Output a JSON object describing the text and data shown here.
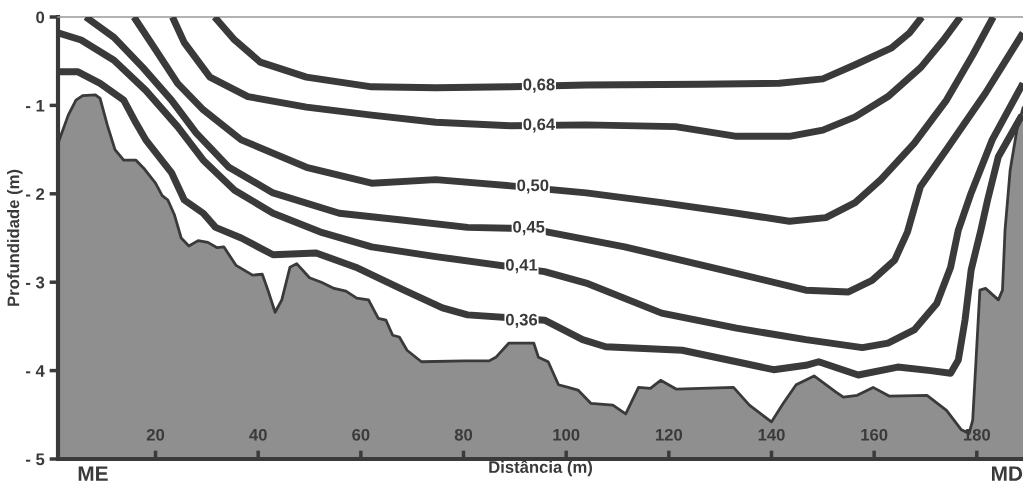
{
  "chart_data": {
    "type": "line",
    "xlabel": "Distância (m)",
    "ylabel": "Profundidade (m)",
    "xlim": [
      1,
      189
    ],
    "ylim": [
      -5,
      0
    ],
    "xticks": [
      20,
      40,
      60,
      80,
      100,
      120,
      140,
      160,
      180
    ],
    "yticks": [
      {
        "value": -5,
        "label": "- 5"
      },
      {
        "value": -4,
        "label": "- 4"
      },
      {
        "value": -3,
        "label": "- 3"
      },
      {
        "value": -2,
        "label": "- 2"
      },
      {
        "value": -1,
        "label": "- 1"
      },
      0
    ],
    "grid": false,
    "legend": false,
    "marker": "none",
    "line_style": "solid",
    "series": [
      {
        "type": "area",
        "color": "#ffffff",
        "x": [
          1,
          3.0,
          4.5,
          5.8,
          8.3,
          9.2,
          10.6,
          12.1,
          13.8,
          16.2,
          17.7,
          20,
          21.3,
          22.4,
          23.7,
          25.0,
          26.5,
          28.3,
          30.2,
          32.0,
          33.3,
          35.7,
          38.9,
          40.8,
          41.9,
          43.3,
          44.6,
          46.2,
          47.5,
          50.0,
          52.3,
          54.8,
          57.1,
          59.2,
          61.5,
          63.4,
          64.9,
          66.2,
          67.5,
          69.0,
          71.8,
          80.2,
          85.0,
          86.3,
          88.8,
          93.7,
          94.6,
          96.5,
          98.5,
          100.4,
          102.3,
          104.8,
          109.1,
          111.6,
          114.1,
          116.4,
          118.4,
          121.5,
          126.2,
          132.6,
          135.7,
          140,
          142.3,
          144.8,
          148.3,
          152.5,
          154.0,
          156.7,
          159.8,
          163,
          170.3,
          174.1,
          177,
          178.5,
          179.2,
          180.6,
          181.7,
          184.2,
          185.0,
          185.5,
          186.5,
          187.8,
          189
        ],
        "values": [
          -1.43,
          -1.11,
          -0.94,
          -0.89,
          -0.88,
          -0.92,
          -1.22,
          -1.5,
          -1.62,
          -1.62,
          -1.71,
          -1.88,
          -2.02,
          -2.07,
          -2.24,
          -2.5,
          -2.59,
          -2.53,
          -2.55,
          -2.61,
          -2.6,
          -2.81,
          -2.92,
          -2.91,
          -3.09,
          -3.34,
          -3.2,
          -2.83,
          -2.79,
          -2.95,
          -3.0,
          -3.07,
          -3.1,
          -3.18,
          -3.2,
          -3.41,
          -3.43,
          -3.6,
          -3.62,
          -3.77,
          -3.9,
          -3.89,
          -3.89,
          -3.85,
          -3.69,
          -3.69,
          -3.85,
          -3.9,
          -4.16,
          -4.19,
          -4.22,
          -4.37,
          -4.39,
          -4.49,
          -4.19,
          -4.2,
          -4.11,
          -4.21,
          -4.2,
          -4.19,
          -4.39,
          -4.58,
          -4.37,
          -4.16,
          -4.06,
          -4.24,
          -4.3,
          -4.28,
          -4.19,
          -4.29,
          -4.28,
          -4.45,
          -4.67,
          -4.71,
          -4.56,
          -3.09,
          -3.07,
          -3.2,
          -3.09,
          -2.41,
          -1.73,
          -1.28,
          -1.03
        ]
      },
      {
        "color": "#3a3a3a",
        "x": [
          31.5,
          35.4,
          40.4,
          49.4,
          62.1,
          74.6,
          89.2,
          103.9,
          126.2,
          141.5,
          150.0,
          156.3,
          163.4,
          166.9,
          169.3
        ],
        "values": [
          0,
          -0.26,
          -0.51,
          -0.68,
          -0.79,
          -0.8,
          -0.79,
          -0.77,
          -0.76,
          -0.75,
          -0.7,
          -0.54,
          -0.35,
          -0.18,
          0
        ]
      },
      {
        "color": "#3a3a3a",
        "x": [
          23.3,
          25.6,
          30.6,
          38.0,
          49.4,
          62.1,
          74.6,
          89.2,
          103.9,
          121.3,
          133.2,
          143.5,
          150.0,
          156.3,
          162.7,
          169.1,
          173.5,
          176.8
        ],
        "values": [
          0,
          -0.29,
          -0.68,
          -0.9,
          -1.02,
          -1.11,
          -1.19,
          -1.23,
          -1.22,
          -1.24,
          -1.35,
          -1.35,
          -1.28,
          -1.13,
          -0.9,
          -0.57,
          -0.26,
          0
        ]
      },
      {
        "color": "#3a3a3a",
        "x": [
          15.8,
          20.0,
          24.3,
          29.3,
          36.7,
          49.4,
          62.1,
          74.6,
          89.2,
          103.9,
          118.6,
          133.2,
          143.5,
          150.6,
          156.3,
          161.3,
          167.8,
          174.1,
          179.2,
          183.2
        ],
        "values": [
          0,
          -0.37,
          -0.75,
          -1.05,
          -1.39,
          -1.7,
          -1.88,
          -1.84,
          -1.91,
          -1.99,
          -2.1,
          -2.22,
          -2.31,
          -2.27,
          -2.1,
          -1.84,
          -1.43,
          -0.94,
          -0.43,
          0
        ]
      },
      {
        "color": "#3a3a3a",
        "x": [
          6.4,
          11.9,
          17.5,
          23.1,
          27.9,
          34.3,
          42.9,
          55.8,
          68.4,
          80.8,
          89.2,
          96.2,
          111.4,
          133.2,
          146.7,
          155.0,
          159.6,
          164.0,
          166.5,
          169.0,
          174.1,
          181.7,
          189
        ],
        "values": [
          0,
          -0.23,
          -0.57,
          -0.94,
          -1.31,
          -1.7,
          -1.99,
          -2.22,
          -2.3,
          -2.38,
          -2.39,
          -2.43,
          -2.6,
          -2.9,
          -3.09,
          -3.11,
          -2.98,
          -2.75,
          -2.43,
          -1.92,
          -1.5,
          -0.86,
          -0.18
        ]
      },
      {
        "color": "#3a3a3a",
        "x": [
          1,
          5.5,
          11.9,
          18.1,
          24.3,
          29.3,
          35.4,
          42.9,
          52.5,
          62.1,
          74.6,
          95.8,
          103.9,
          118.6,
          133.2,
          146.7,
          157.7,
          162.7,
          167.8,
          172.2,
          174.9,
          176.4,
          178.9,
          183.0,
          189
        ],
        "values": [
          -0.18,
          -0.26,
          -0.49,
          -0.83,
          -1.24,
          -1.62,
          -1.96,
          -2.22,
          -2.44,
          -2.6,
          -2.71,
          -2.88,
          -3.01,
          -3.35,
          -3.52,
          -3.65,
          -3.74,
          -3.69,
          -3.54,
          -3.24,
          -2.83,
          -2.41,
          -1.99,
          -1.39,
          -0.75
        ]
      },
      {
        "color": "#3a3a3a",
        "x": [
          1,
          4.9,
          9.2,
          13.8,
          16.2,
          18.1,
          23.1,
          25.6,
          29.3,
          31.7,
          36.7,
          42.9,
          51.3,
          59.0,
          68.4,
          75.9,
          80.8,
          95.8,
          103.2,
          107.7,
          122.6,
          133.2,
          140.4,
          146.7,
          149.2,
          156.9,
          164.6,
          171.0,
          174.9,
          176.4,
          177.7,
          178.9,
          180.8,
          182.1,
          184.2,
          188.8
        ],
        "values": [
          -0.62,
          -0.62,
          -0.75,
          -0.94,
          -1.2,
          -1.39,
          -1.76,
          -2.07,
          -2.22,
          -2.38,
          -2.5,
          -2.69,
          -2.67,
          -2.83,
          -3.09,
          -3.29,
          -3.37,
          -3.43,
          -3.65,
          -3.73,
          -3.77,
          -3.9,
          -3.99,
          -3.94,
          -3.9,
          -4.05,
          -3.96,
          -4.0,
          -4.03,
          -3.88,
          -3.43,
          -2.86,
          -2.41,
          -2.07,
          -1.58,
          -1.11
        ]
      }
    ],
    "annotations": [
      {
        "text": "0,68",
        "x": 94.7,
        "y": -0.78
      },
      {
        "text": "0,64",
        "x": 94.7,
        "y": -1.23
      },
      {
        "text": "0,50",
        "x": 93.5,
        "y": -1.92
      },
      {
        "text": "0,45",
        "x": 92.7,
        "y": -2.39
      },
      {
        "text": "0,41",
        "x": 91.3,
        "y": -2.82
      },
      {
        "text": "0,36",
        "x": 91.3,
        "y": -3.44
      },
      "ME",
      "MD"
    ]
  }
}
